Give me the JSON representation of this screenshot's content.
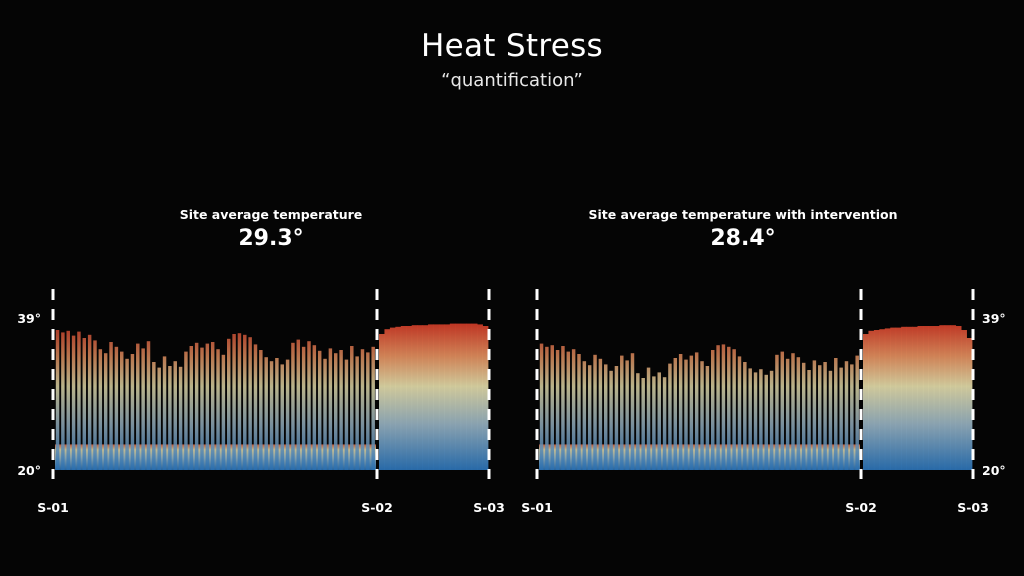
{
  "header": {
    "title": "Heat Stress",
    "subtitle": "“quantification”"
  },
  "chart_data": [
    {
      "type": "bar",
      "title": "Site average temperature",
      "average_label": "29.3°",
      "ylim": [
        20,
        39
      ],
      "ytick_labels": [
        "39°",
        "20°"
      ],
      "ytick_side": "left",
      "site_labels": [
        "S-01",
        "S-02",
        "S-03"
      ],
      "segments": [
        {
          "from": "S-01",
          "to": "S-02",
          "band_top": 23.2,
          "values": [
            37.5,
            37.2,
            37.4,
            36.8,
            37.3,
            36.5,
            36.9,
            36.2,
            35.1,
            34.6,
            36.0,
            35.4,
            34.8,
            33.9,
            34.5,
            35.8,
            35.2,
            36.1,
            33.5,
            32.8,
            34.2,
            33.0,
            33.6,
            32.9,
            34.8,
            35.5,
            35.9,
            35.3,
            35.8,
            36.0,
            35.1,
            34.4,
            36.4,
            37.0,
            37.1,
            36.9,
            36.6,
            35.7,
            35.0,
            34.1,
            33.6,
            34.0,
            33.2,
            33.8,
            35.9,
            36.3,
            35.4,
            36.1,
            35.6,
            34.9,
            33.9,
            35.2,
            34.6,
            35.0,
            33.8,
            35.5,
            34.2,
            35.1,
            34.7,
            35.4
          ]
        },
        {
          "from": "S-02",
          "to": "S-03",
          "band_top": null,
          "values": [
            37.0,
            37.6,
            37.8,
            37.9,
            38.0,
            38.0,
            38.1,
            38.1,
            38.1,
            38.2,
            38.2,
            38.2,
            38.2,
            38.3,
            38.3,
            38.3,
            38.3,
            38.3,
            38.2,
            38.0
          ]
        }
      ]
    },
    {
      "type": "bar",
      "title": "Site average temperature with intervention",
      "average_label": "28.4°",
      "ylim": [
        20,
        39
      ],
      "ytick_labels": [
        "39°",
        "20°"
      ],
      "ytick_side": "right",
      "site_labels": [
        "S-01",
        "S-02",
        "S-03"
      ],
      "segments": [
        {
          "from": "S-01",
          "to": "S-02",
          "band_top": 23.2,
          "values": [
            35.8,
            35.4,
            35.6,
            35.0,
            35.5,
            34.8,
            35.1,
            34.5,
            33.6,
            33.1,
            34.4,
            33.9,
            33.2,
            32.4,
            33.0,
            34.3,
            33.7,
            34.6,
            32.1,
            31.5,
            32.8,
            31.7,
            32.2,
            31.6,
            33.3,
            34.0,
            34.5,
            33.8,
            34.3,
            34.7,
            33.6,
            33.0,
            35.0,
            35.6,
            35.7,
            35.4,
            35.1,
            34.2,
            33.5,
            32.7,
            32.2,
            32.6,
            31.9,
            32.4,
            34.4,
            34.8,
            33.9,
            34.6,
            34.1,
            33.4,
            32.5,
            33.7,
            33.1,
            33.5,
            32.4,
            34.0,
            32.8,
            33.6,
            33.2,
            34.3
          ]
        },
        {
          "from": "S-02",
          "to": "S-03",
          "band_top": null,
          "values": [
            37.0,
            37.4,
            37.5,
            37.6,
            37.7,
            37.8,
            37.8,
            37.9,
            37.9,
            37.9,
            38.0,
            38.0,
            38.0,
            38.0,
            38.1,
            38.1,
            38.1,
            38.0,
            37.5,
            36.5
          ]
        }
      ]
    }
  ]
}
